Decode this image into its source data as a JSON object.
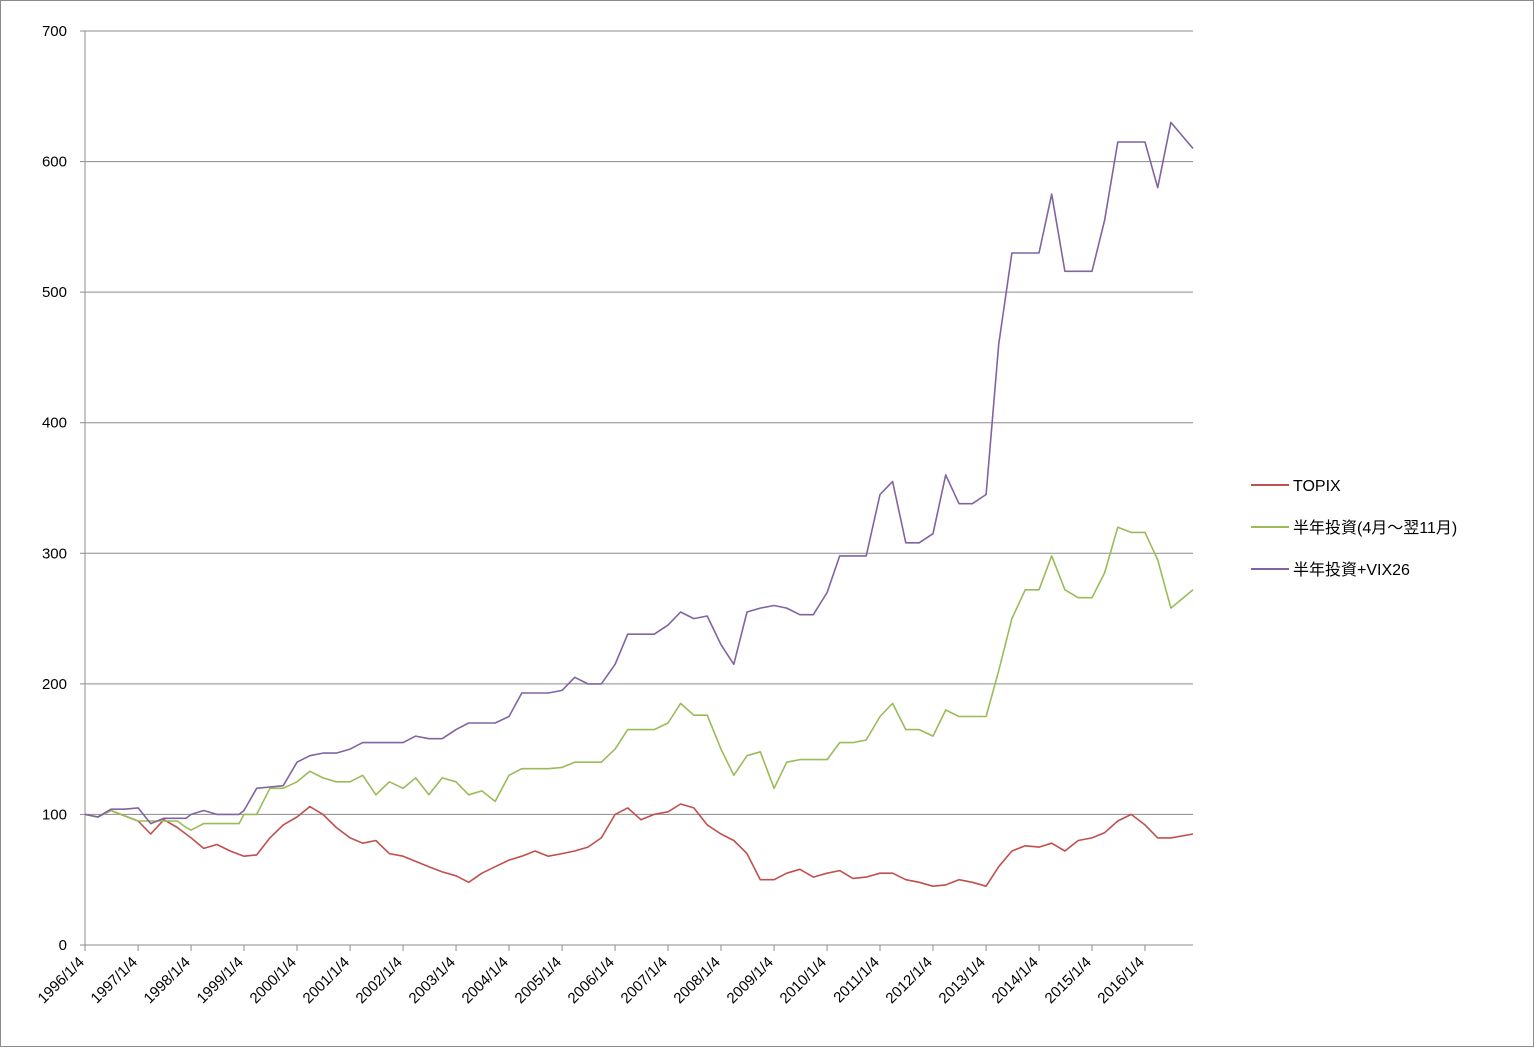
{
  "chart_data": {
    "type": "line",
    "title": "",
    "xlabel": "",
    "ylabel": "",
    "ylim": [
      0,
      700
    ],
    "yticks": [
      0,
      100,
      200,
      300,
      400,
      500,
      600,
      700
    ],
    "xticks": [
      "1996/1/4",
      "1997/1/4",
      "1998/1/4",
      "1999/1/4",
      "2000/1/4",
      "2001/1/4",
      "2002/1/4",
      "2003/1/4",
      "2004/1/4",
      "2005/1/4",
      "2006/1/4",
      "2007/1/4",
      "2008/1/4",
      "2009/1/4",
      "2010/1/4",
      "2011/1/4",
      "2012/1/4",
      "2013/1/4",
      "2014/1/4",
      "2015/1/4",
      "2016/1/4"
    ],
    "xlim": [
      "1996/1/4",
      "2016/11/30"
    ],
    "grid": "horizontal",
    "legend_position": "right",
    "series": [
      {
        "name": "TOPIX",
        "color": "#c0504d",
        "x": [
          "1996/1/4",
          "1996/4/1",
          "1996/7/1",
          "1996/10/1",
          "1997/1/4",
          "1997/4/1",
          "1997/7/1",
          "1997/10/1",
          "1998/1/4",
          "1998/4/1",
          "1998/7/1",
          "1998/10/1",
          "1999/1/4",
          "1999/4/1",
          "1999/7/1",
          "1999/10/1",
          "2000/1/4",
          "2000/4/1",
          "2000/7/1",
          "2000/10/1",
          "2001/1/4",
          "2001/4/1",
          "2001/7/1",
          "2001/10/1",
          "2002/1/4",
          "2002/4/1",
          "2002/7/1",
          "2002/10/1",
          "2003/1/4",
          "2003/4/1",
          "2003/7/1",
          "2003/10/1",
          "2004/1/4",
          "2004/4/1",
          "2004/7/1",
          "2004/10/1",
          "2005/1/4",
          "2005/4/1",
          "2005/7/1",
          "2005/10/1",
          "2006/1/4",
          "2006/4/1",
          "2006/7/1",
          "2006/10/1",
          "2007/1/4",
          "2007/4/1",
          "2007/7/1",
          "2007/10/1",
          "2008/1/4",
          "2008/4/1",
          "2008/7/1",
          "2008/10/1",
          "2009/1/4",
          "2009/4/1",
          "2009/7/1",
          "2009/10/1",
          "2010/1/4",
          "2010/4/1",
          "2010/7/1",
          "2010/10/1",
          "2011/1/4",
          "2011/4/1",
          "2011/7/1",
          "2011/10/1",
          "2012/1/4",
          "2012/4/1",
          "2012/7/1",
          "2012/10/1",
          "2013/1/4",
          "2013/4/1",
          "2013/7/1",
          "2013/10/1",
          "2014/1/4",
          "2014/4/1",
          "2014/7/1",
          "2014/10/1",
          "2015/1/4",
          "2015/4/1",
          "2015/7/1",
          "2015/10/1",
          "2016/1/4",
          "2016/4/1",
          "2016/7/1",
          "2016/11/30"
        ],
        "values": [
          100,
          98,
          103,
          99,
          95,
          85,
          96,
          90,
          82,
          74,
          77,
          72,
          68,
          69,
          82,
          92,
          98,
          106,
          100,
          90,
          82,
          78,
          80,
          70,
          68,
          64,
          60,
          56,
          53,
          48,
          55,
          60,
          65,
          68,
          72,
          68,
          70,
          72,
          75,
          82,
          100,
          105,
          96,
          100,
          102,
          108,
          105,
          92,
          85,
          80,
          70,
          50,
          50,
          55,
          58,
          52,
          55,
          57,
          51,
          52,
          55,
          55,
          50,
          48,
          45,
          46,
          50,
          48,
          45,
          60,
          72,
          76,
          75,
          78,
          72,
          80,
          82,
          86,
          95,
          100,
          92,
          82,
          82,
          85
        ]
      },
      {
        "name": "半年投資(4月～翌11月)",
        "color": "#9bbb59",
        "x": [
          "1996/1/4",
          "1996/4/1",
          "1996/7/1",
          "1996/10/1",
          "1997/1/4",
          "1997/4/1",
          "1997/7/1",
          "1997/10/1",
          "1997/12/1",
          "1998/1/4",
          "1998/4/1",
          "1998/7/1",
          "1998/10/1",
          "1998/12/1",
          "1999/1/4",
          "1999/4/1",
          "1999/7/1",
          "1999/10/1",
          "2000/1/4",
          "2000/4/1",
          "2000/7/1",
          "2000/10/1",
          "2001/1/4",
          "2001/4/1",
          "2001/7/1",
          "2001/10/1",
          "2002/1/4",
          "2002/4/1",
          "2002/7/1",
          "2002/10/1",
          "2003/1/4",
          "2003/4/1",
          "2003/7/1",
          "2003/10/1",
          "2004/1/4",
          "2004/4/1",
          "2004/7/1",
          "2004/10/1",
          "2005/1/4",
          "2005/4/1",
          "2005/7/1",
          "2005/10/1",
          "2006/1/4",
          "2006/4/1",
          "2006/7/1",
          "2006/10/1",
          "2007/1/4",
          "2007/4/1",
          "2007/7/1",
          "2007/10/1",
          "2008/1/4",
          "2008/4/1",
          "2008/7/1",
          "2008/10/1",
          "2009/1/4",
          "2009/4/1",
          "2009/7/1",
          "2009/10/1",
          "2010/1/4",
          "2010/4/1",
          "2010/7/1",
          "2010/10/1",
          "2011/1/4",
          "2011/4/1",
          "2011/7/1",
          "2011/10/1",
          "2012/1/4",
          "2012/4/1",
          "2012/7/1",
          "2012/10/1",
          "2013/1/4",
          "2013/4/1",
          "2013/7/1",
          "2013/10/1",
          "2014/1/4",
          "2014/4/1",
          "2014/7/1",
          "2014/10/1",
          "2015/1/4",
          "2015/4/1",
          "2015/7/1",
          "2015/10/1",
          "2016/1/4",
          "2016/4/1",
          "2016/7/1",
          "2016/11/30"
        ],
        "values": [
          100,
          98,
          103,
          99,
          95,
          95,
          95,
          95,
          90,
          88,
          93,
          93,
          93,
          93,
          100,
          100,
          120,
          120,
          125,
          133,
          128,
          125,
          125,
          130,
          115,
          125,
          120,
          128,
          115,
          128,
          125,
          115,
          118,
          110,
          130,
          135,
          135,
          135,
          136,
          140,
          140,
          140,
          150,
          165,
          165,
          165,
          170,
          185,
          176,
          176,
          150,
          130,
          145,
          148,
          120,
          140,
          142,
          142,
          142,
          155,
          155,
          157,
          175,
          185,
          165,
          165,
          160,
          180,
          175,
          175,
          175,
          210,
          250,
          272,
          272,
          298,
          272,
          266,
          266,
          285,
          320,
          316,
          316,
          295,
          258,
          272
        ]
      },
      {
        "name": "半年投資+VIX26",
        "color": "#8064a2",
        "x": [
          "1996/1/4",
          "1996/4/1",
          "1996/7/1",
          "1996/10/1",
          "1997/1/4",
          "1997/4/1",
          "1997/7/1",
          "1997/10/1",
          "1997/12/1",
          "1998/1/4",
          "1998/4/1",
          "1998/7/1",
          "1998/10/1",
          "1998/12/1",
          "1999/1/4",
          "1999/4/1",
          "1999/7/1",
          "1999/10/1",
          "2000/1/4",
          "2000/4/1",
          "2000/7/1",
          "2000/10/1",
          "2001/1/4",
          "2001/4/1",
          "2001/7/1",
          "2001/10/1",
          "2002/1/4",
          "2002/4/1",
          "2002/7/1",
          "2002/10/1",
          "2003/1/4",
          "2003/4/1",
          "2003/7/1",
          "2003/10/1",
          "2004/1/4",
          "2004/4/1",
          "2004/7/1",
          "2004/10/1",
          "2005/1/4",
          "2005/4/1",
          "2005/7/1",
          "2005/10/1",
          "2006/1/4",
          "2006/4/1",
          "2006/7/1",
          "2006/10/1",
          "2007/1/4",
          "2007/4/1",
          "2007/7/1",
          "2007/10/1",
          "2008/1/4",
          "2008/4/1",
          "2008/7/1",
          "2008/10/1",
          "2009/1/4",
          "2009/4/1",
          "2009/7/1",
          "2009/10/1",
          "2010/1/4",
          "2010/4/1",
          "2010/7/1",
          "2010/10/1",
          "2011/1/4",
          "2011/4/1",
          "2011/7/1",
          "2011/10/1",
          "2012/1/4",
          "2012/4/1",
          "2012/7/1",
          "2012/10/1",
          "2013/1/4",
          "2013/4/1",
          "2013/7/1",
          "2013/10/1",
          "2014/1/4",
          "2014/4/1",
          "2014/7/1",
          "2014/10/1",
          "2015/1/4",
          "2015/4/1",
          "2015/7/1",
          "2015/10/1",
          "2016/1/4",
          "2016/4/1",
          "2016/7/1",
          "2016/11/30"
        ],
        "values": [
          100,
          98,
          104,
          104,
          105,
          93,
          97,
          97,
          97,
          100,
          103,
          100,
          100,
          100,
          103,
          120,
          121,
          122,
          140,
          145,
          147,
          147,
          150,
          155,
          155,
          155,
          155,
          160,
          158,
          158,
          165,
          170,
          170,
          170,
          175,
          193,
          193,
          193,
          195,
          205,
          200,
          200,
          215,
          238,
          238,
          238,
          245,
          255,
          250,
          252,
          230,
          215,
          255,
          258,
          260,
          258,
          253,
          253,
          270,
          298,
          298,
          298,
          345,
          355,
          308,
          308,
          315,
          360,
          338,
          338,
          345,
          460,
          530,
          530,
          530,
          575,
          516,
          516,
          516,
          555,
          615,
          615,
          615,
          580,
          630,
          610
        ]
      }
    ]
  }
}
